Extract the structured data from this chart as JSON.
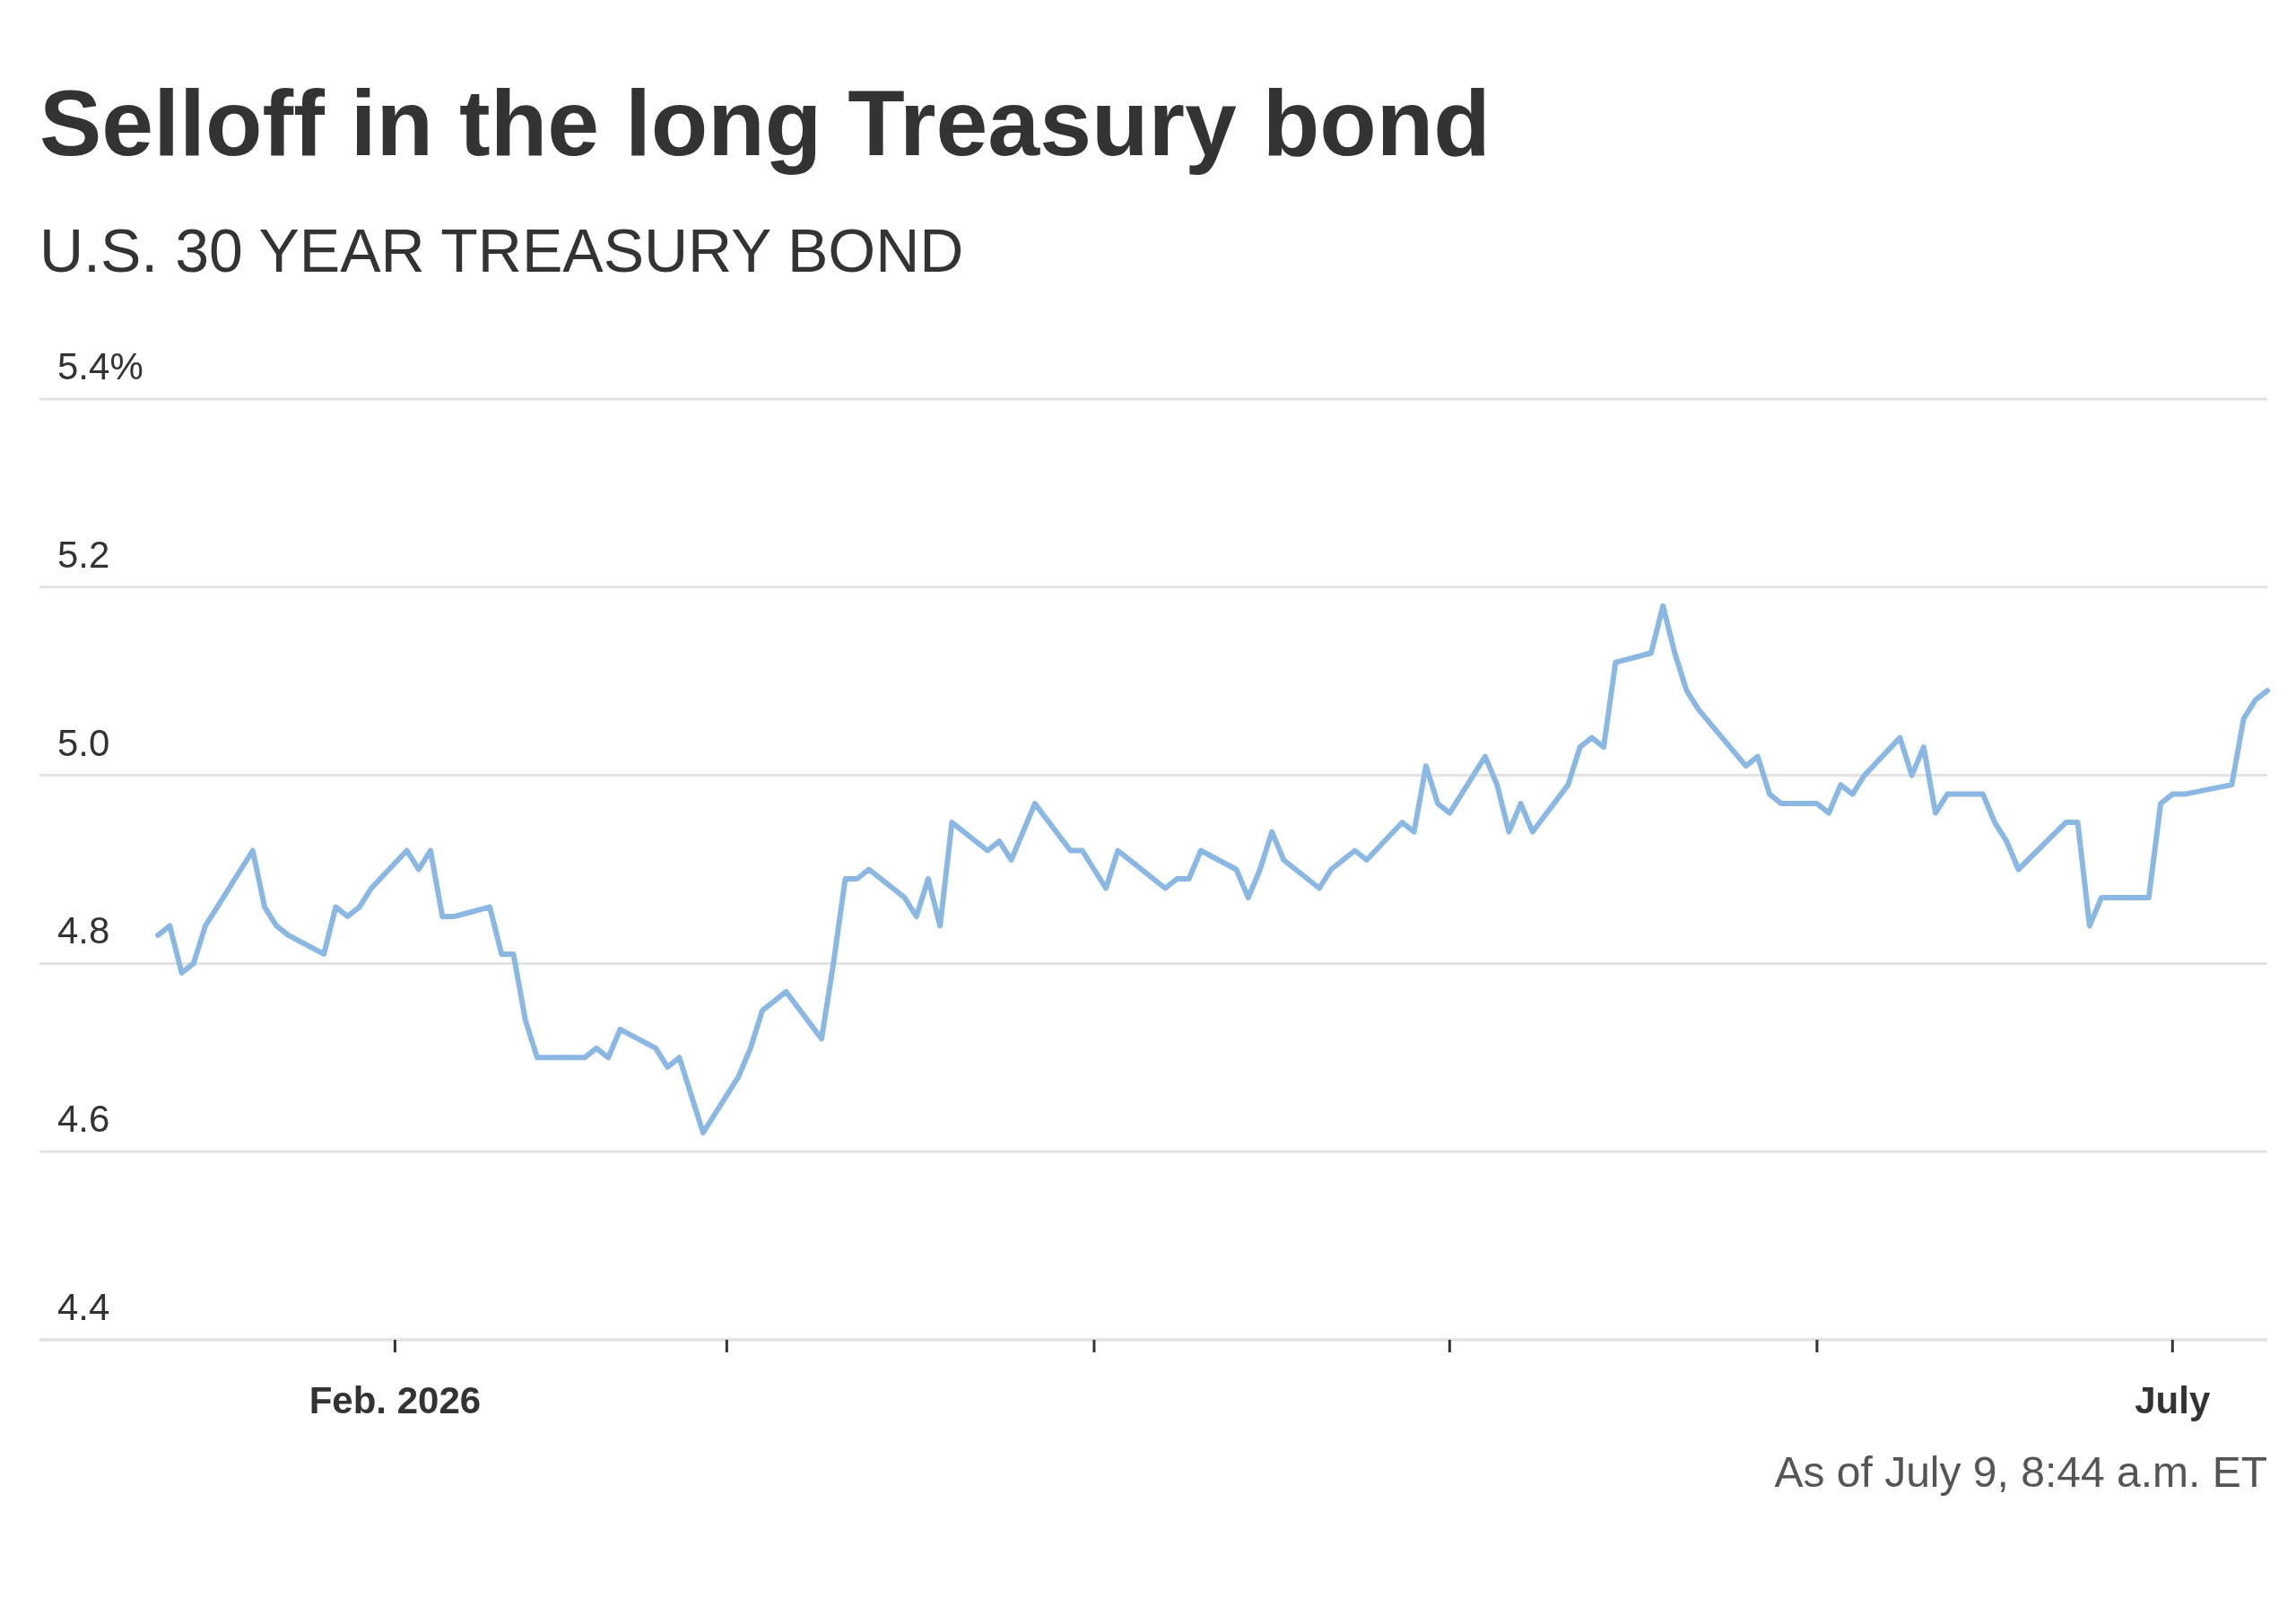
{
  "chart_data": {
    "type": "line",
    "title": "Selloff in the long Treasury bond",
    "subtitle": "U.S. 30 YEAR TREASURY BOND",
    "annotations": [
      "As of July 9, 8:44 a.m. ET"
    ],
    "x": [
      "2026-01-12",
      "2026-01-13",
      "2026-01-14",
      "2026-01-15",
      "2026-01-16",
      "2026-01-20",
      "2026-01-21",
      "2026-01-22",
      "2026-01-23",
      "2026-01-26",
      "2026-01-27",
      "2026-01-28",
      "2026-01-29",
      "2026-01-30",
      "2026-02-02",
      "2026-02-03",
      "2026-02-04",
      "2026-02-05",
      "2026-02-06",
      "2026-02-09",
      "2026-02-10",
      "2026-02-11",
      "2026-02-12",
      "2026-02-13",
      "2026-02-17",
      "2026-02-18",
      "2026-02-19",
      "2026-02-20",
      "2026-02-23",
      "2026-02-24",
      "2026-02-25",
      "2026-02-26",
      "2026-02-27",
      "2026-03-02",
      "2026-03-03",
      "2026-03-04",
      "2026-03-05",
      "2026-03-06",
      "2026-03-09",
      "2026-03-10",
      "2026-03-11",
      "2026-03-12",
      "2026-03-13",
      "2026-03-16",
      "2026-03-17",
      "2026-03-18",
      "2026-03-19",
      "2026-03-20",
      "2026-03-23",
      "2026-03-24",
      "2026-03-25",
      "2026-03-26",
      "2026-03-27",
      "2026-03-30",
      "2026-03-31",
      "2026-04-01",
      "2026-04-02",
      "2026-04-03",
      "2026-04-06",
      "2026-04-07",
      "2026-04-08",
      "2026-04-09",
      "2026-04-10",
      "2026-04-13",
      "2026-04-14",
      "2026-04-15",
      "2026-04-16",
      "2026-04-17",
      "2026-04-20",
      "2026-04-21",
      "2026-04-22",
      "2026-04-23",
      "2026-04-24",
      "2026-04-27",
      "2026-04-28",
      "2026-04-29",
      "2026-04-30",
      "2026-05-01",
      "2026-05-04",
      "2026-05-05",
      "2026-05-06",
      "2026-05-07",
      "2026-05-08",
      "2026-05-11",
      "2026-05-12",
      "2026-05-13",
      "2026-05-14",
      "2026-05-15",
      "2026-05-18",
      "2026-05-19",
      "2026-05-20",
      "2026-05-21",
      "2026-05-22",
      "2026-05-26",
      "2026-05-27",
      "2026-05-28",
      "2026-05-29",
      "2026-06-01",
      "2026-06-02",
      "2026-06-03",
      "2026-06-04",
      "2026-06-05",
      "2026-06-08",
      "2026-06-09",
      "2026-06-10",
      "2026-06-11",
      "2026-06-12",
      "2026-06-15",
      "2026-06-16",
      "2026-06-17",
      "2026-06-18",
      "2026-06-22",
      "2026-06-23",
      "2026-06-24",
      "2026-06-25",
      "2026-06-26",
      "2026-06-29",
      "2026-06-30",
      "2026-07-01",
      "2026-07-02",
      "2026-07-06",
      "2026-07-07",
      "2026-07-08",
      "2026-07-09"
    ],
    "series": [
      {
        "color": "#8ab8e3",
        "values": [
          4.83,
          4.84,
          4.79,
          4.8,
          4.84,
          4.92,
          4.86,
          4.84,
          4.83,
          4.81,
          4.86,
          4.85,
          4.86,
          4.88,
          4.92,
          4.9,
          4.92,
          4.85,
          4.85,
          4.86,
          4.81,
          4.81,
          4.74,
          4.7,
          4.7,
          4.71,
          4.7,
          4.73,
          4.71,
          4.69,
          4.7,
          4.66,
          4.62,
          4.68,
          4.71,
          4.75,
          4.76,
          4.77,
          4.72,
          4.8,
          4.89,
          4.89,
          4.9,
          4.87,
          4.85,
          4.89,
          4.84,
          4.95,
          4.92,
          4.93,
          4.91,
          4.94,
          4.97,
          4.92,
          4.92,
          4.9,
          4.88,
          4.92,
          4.89,
          4.88,
          4.89,
          4.89,
          4.92,
          4.9,
          4.87,
          4.9,
          4.94,
          4.91,
          4.88,
          4.9,
          4.91,
          4.92,
          4.91,
          4.95,
          4.94,
          5.01,
          4.97,
          4.96,
          5.02,
          4.99,
          4.94,
          4.97,
          4.94,
          4.99,
          5.03,
          5.04,
          5.03,
          5.12,
          5.13,
          5.18,
          5.13,
          5.09,
          5.07,
          5.01,
          5.02,
          4.98,
          4.97,
          4.97,
          4.96,
          4.99,
          4.98,
          5.0,
          5.04,
          5.0,
          5.03,
          4.96,
          4.98,
          4.98,
          4.95,
          4.93,
          4.9,
          4.95,
          4.95,
          4.84,
          4.87,
          4.87,
          4.87,
          4.97,
          4.98,
          4.98,
          4.99,
          5.06,
          5.08,
          5.09
        ]
      }
    ],
    "xlim": [
      "2026-01-02",
      "2026-07-09"
    ],
    "xticks": [
      {
        "value": "2026-02-01",
        "label": "Feb. 2026"
      },
      {
        "value": "2026-03-01",
        "label": null
      },
      {
        "value": "2026-04-01",
        "label": null
      },
      {
        "value": "2026-05-01",
        "label": null
      },
      {
        "value": "2026-06-01",
        "label": null
      },
      {
        "value": "2026-07-01",
        "label": "July"
      }
    ],
    "ylim": [
      4.4,
      5.4
    ],
    "yticks": [
      4.4,
      4.6,
      4.8,
      {
        "value": 5.0,
        "label": "5.0"
      },
      5.2,
      {
        "value": 5.4,
        "label": "5.4%"
      }
    ],
    "grid": "y",
    "marker": "none",
    "line_style": "solid"
  }
}
